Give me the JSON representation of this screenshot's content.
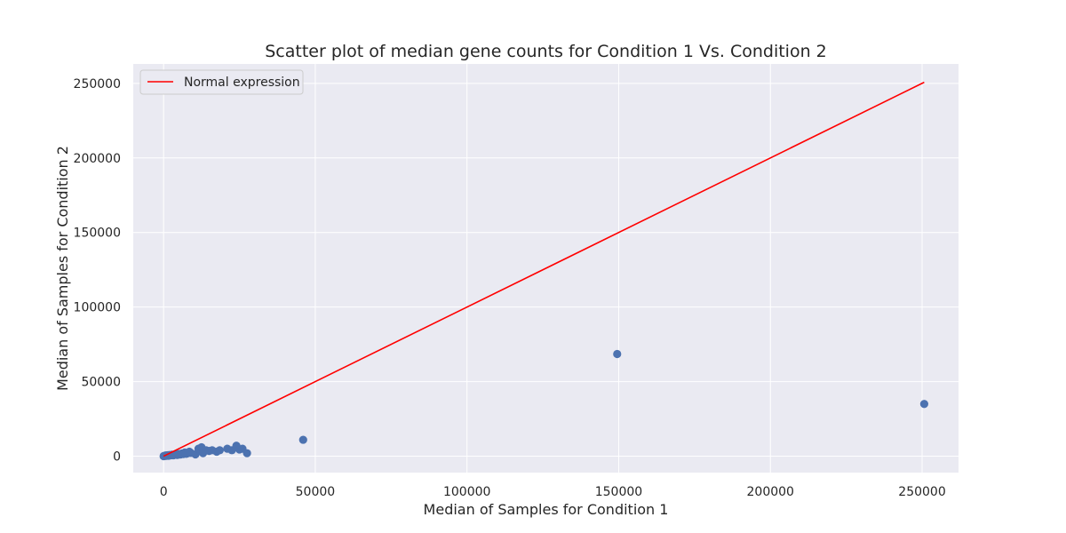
{
  "chart_data": {
    "type": "scatter",
    "title": "Scatter plot of median gene counts for Condition 1 Vs. Condition 2",
    "xlabel": "Median of Samples for Condition 1",
    "ylabel": "Median of Samples for Condition 2",
    "xlim": [
      -10000,
      262000
    ],
    "ylim": [
      -11000,
      263000
    ],
    "xticks": [
      0,
      50000,
      100000,
      150000,
      200000,
      250000
    ],
    "yticks": [
      0,
      50000,
      100000,
      150000,
      200000,
      250000
    ],
    "xtick_labels": [
      "0",
      "50000",
      "100000",
      "150000",
      "200000",
      "250000"
    ],
    "ytick_labels": [
      "0",
      "50000",
      "100000",
      "150000",
      "200000",
      "250000"
    ],
    "grid": true,
    "background": "#eaeaf2",
    "legend": {
      "position": "top-left",
      "entries": [
        "Normal expression"
      ]
    },
    "series": [
      {
        "name": "Normal expression",
        "kind": "line",
        "color": "#ff0000",
        "x": [
          0,
          250700
        ],
        "y": [
          0,
          250700
        ]
      },
      {
        "kind": "points",
        "color": "#4c72b0",
        "x": [
          0,
          150,
          300,
          500,
          700,
          900,
          1100,
          1300,
          1600,
          1900,
          2200,
          2500,
          2800,
          3200,
          3600,
          4000,
          4500,
          5000,
          5500,
          6000,
          6500,
          7000,
          7500,
          8000,
          8500,
          9000,
          10500,
          11500,
          12500,
          13000,
          14000,
          15000,
          16000,
          17500,
          18500,
          21000,
          22500,
          24000,
          25000,
          26000,
          27500,
          46000,
          149500,
          250700
        ],
        "y": [
          0,
          200,
          100,
          300,
          500,
          200,
          400,
          600,
          300,
          800,
          500,
          700,
          1000,
          600,
          900,
          1200,
          800,
          1500,
          1100,
          1800,
          1400,
          2500,
          1600,
          2000,
          3000,
          2200,
          1200,
          5000,
          6000,
          2000,
          4000,
          3500,
          4000,
          3000,
          4000,
          5000,
          4000,
          7000,
          4500,
          5000,
          2000,
          11000,
          68500,
          35000
        ]
      }
    ]
  }
}
